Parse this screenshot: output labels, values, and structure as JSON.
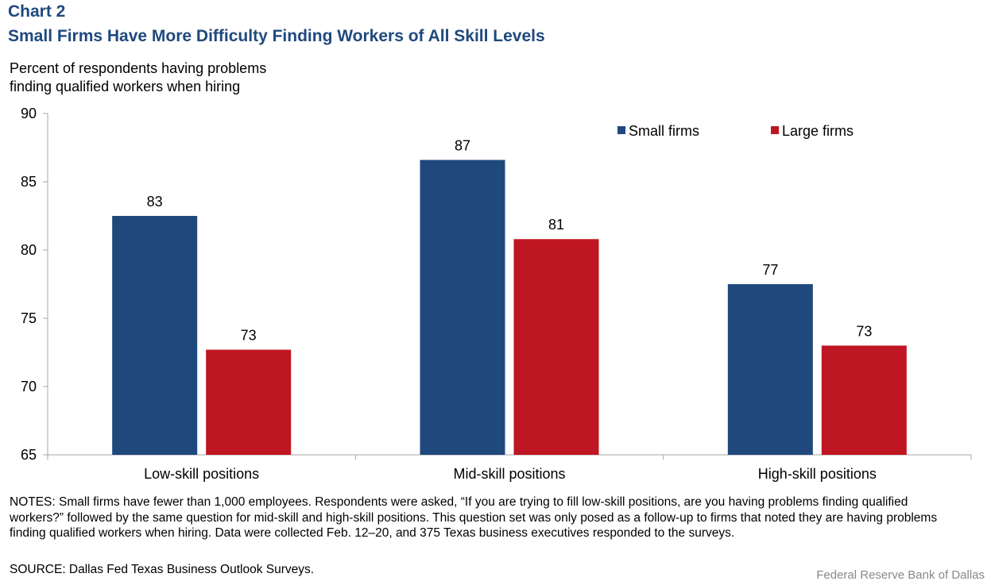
{
  "header": {
    "chart_label": "Chart 2",
    "title": "Small Firms Have More Difficulty Finding Workers of All Skill Levels",
    "ylabel_line1": "Percent of respondents having  problems",
    "ylabel_line2": "finding  qualified  workers when hiring"
  },
  "chart_data": {
    "type": "bar",
    "title": "Small Firms Have More Difficulty Finding Workers of All Skill Levels",
    "ylabel": "Percent of respondents having problems finding qualified workers when hiring",
    "xlabel": "",
    "categories": [
      "Low-skill positions",
      "Mid-skill positions",
      "High-skill positions"
    ],
    "series": [
      {
        "name": "Small firms",
        "values": [
          82.5,
          86.6,
          77.5
        ],
        "labels": [
          "83",
          "87",
          "77"
        ],
        "color": "#1f497d"
      },
      {
        "name": "Large firms",
        "values": [
          72.7,
          80.8,
          73.0
        ],
        "labels": [
          "73",
          "81",
          "73"
        ],
        "color": "#be1622"
      }
    ],
    "ylim": [
      65,
      90
    ],
    "yticks": [
      90,
      85,
      80,
      75,
      70,
      65
    ],
    "grid": false,
    "legend": "top-right"
  },
  "footer": {
    "notes": "NOTES: Small firms have fewer than 1,000 employees. Respondents were asked, “If you are trying to fill low-skill positions, are you having problems finding qualified workers?” followed by the same question for mid-skill and high-skill positions. This question set was only posed as a follow-up to firms that noted they are having problems finding qualified workers when hiring. Data were collected Feb. 12–20, and 375 Texas business executives responded to the surveys.",
    "source": "SOURCE: Dallas Fed Texas Business Outlook Surveys.",
    "credit": "Federal Reserve  Bank of Dallas"
  }
}
